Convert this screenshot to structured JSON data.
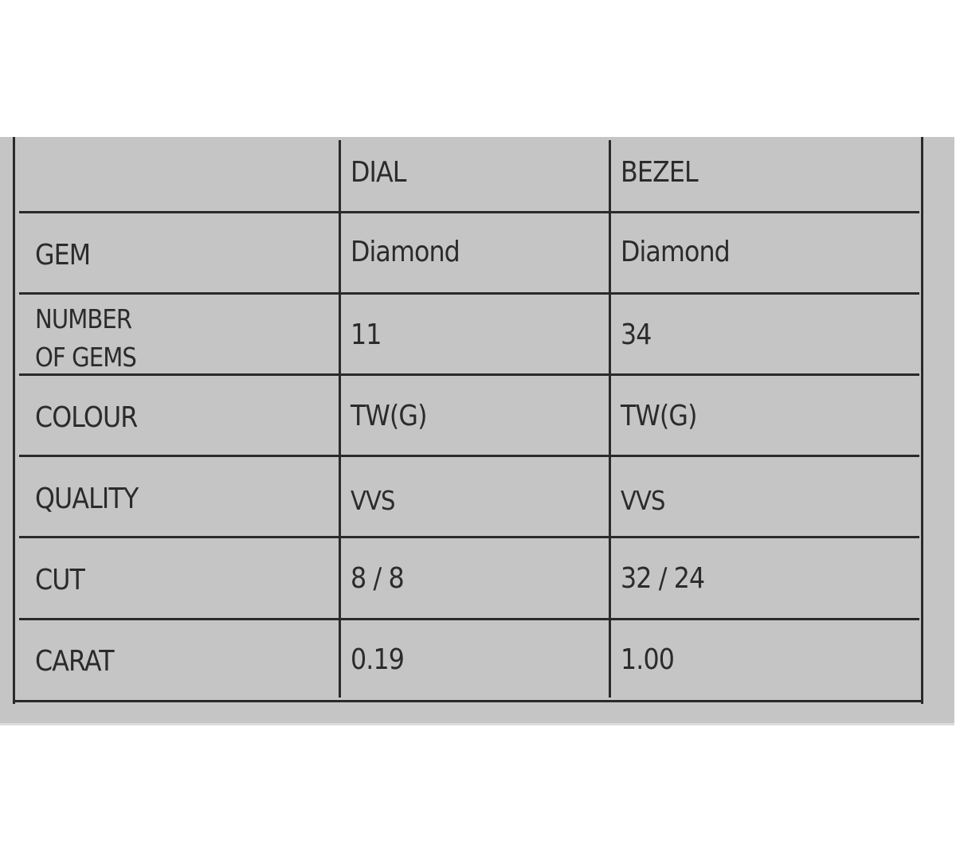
{
  "table": {
    "headers": [
      "",
      "DIAL",
      "BEZEL"
    ],
    "rows": [
      {
        "label": "GEM",
        "dial": "Diamond",
        "bezel": "Diamond"
      },
      {
        "label": "NUMBER OF GEMS",
        "label_line1": "NUMBER",
        "label_line2": "OF GEMS",
        "dial": "11",
        "bezel": "34"
      },
      {
        "label": "COLOUR",
        "dial": "TW(G)",
        "bezel": "TW(G)"
      },
      {
        "label": "QUALITY",
        "dial": "VVS",
        "bezel": "VVS"
      },
      {
        "label": "CUT",
        "dial": "8 / 8",
        "bezel": "32 / 24"
      },
      {
        "label": "CARAT",
        "dial": "0.19",
        "bezel": "1.00"
      }
    ]
  },
  "colors": {
    "card": "#c5c5c5",
    "ink": "#2b2b2b"
  }
}
